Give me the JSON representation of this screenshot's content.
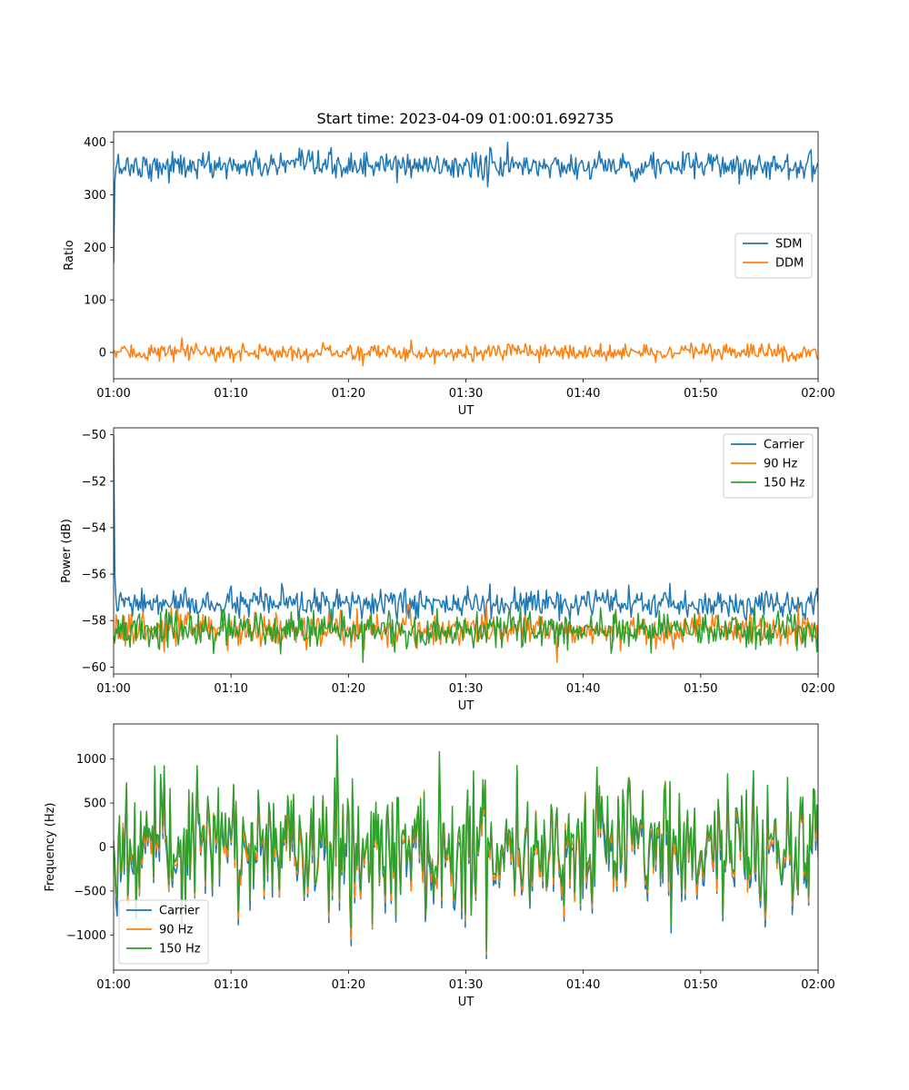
{
  "figure": {
    "title": "Start time: 2023-04-09 01:00:01.692735"
  },
  "colors": {
    "blue": "#1f77b4",
    "orange": "#ff7f0e",
    "green": "#2ca02c"
  },
  "chart_data": [
    {
      "type": "line",
      "title": "Start time: 2023-04-09 01:00:01.692735",
      "xlabel": "UT",
      "ylabel": "Ratio",
      "x_range": [
        "01:00",
        "02:00"
      ],
      "x_ticks": [
        "01:00",
        "01:10",
        "01:20",
        "01:30",
        "01:40",
        "01:50",
        "02:00"
      ],
      "ylim": [
        -50,
        420
      ],
      "y_ticks": [
        0,
        100,
        200,
        300,
        400
      ],
      "legend": "center-right",
      "series": [
        {
          "name": "SDM",
          "color": "#1f77b4",
          "start": 170,
          "mean": 355,
          "noise": 13,
          "spike_max": 400,
          "spike_min": 315
        },
        {
          "name": "DDM",
          "color": "#ff7f0e",
          "mean": 0,
          "noise": 8,
          "spike_max": 28,
          "spike_min": -25
        }
      ]
    },
    {
      "type": "line",
      "xlabel": "UT",
      "ylabel": "Power (dB)",
      "x_range": [
        "01:00",
        "02:00"
      ],
      "x_ticks": [
        "01:00",
        "01:10",
        "01:20",
        "01:30",
        "01:40",
        "01:50",
        "02:00"
      ],
      "ylim": [
        -60.3,
        -49.7
      ],
      "y_ticks": [
        -60,
        -58,
        -56,
        -54,
        -52,
        -50
      ],
      "legend": "top-right",
      "series": [
        {
          "name": "Carrier",
          "color": "#1f77b4",
          "start": -50,
          "mean": -57.3,
          "noise": 0.3,
          "spike_max": -56.4,
          "spike_min": -58.0
        },
        {
          "name": "90 Hz",
          "color": "#ff7f0e",
          "mean": -58.4,
          "noise": 0.35,
          "spike_max": -57.3,
          "spike_min": -59.8
        },
        {
          "name": "150 Hz",
          "color": "#2ca02c",
          "mean": -58.4,
          "noise": 0.4,
          "spike_max": -57.4,
          "spike_min": -59.8
        }
      ]
    },
    {
      "type": "line",
      "xlabel": "UT",
      "ylabel": "Frequency (Hz)",
      "x_range": [
        "01:00",
        "02:00"
      ],
      "x_ticks": [
        "01:00",
        "01:10",
        "01:20",
        "01:30",
        "01:40",
        "01:50",
        "02:00"
      ],
      "ylim": [
        -1400,
        1400
      ],
      "y_ticks": [
        -1000,
        -500,
        0,
        500,
        1000
      ],
      "legend": "bottom-left",
      "series": [
        {
          "name": "Carrier",
          "color": "#1f77b4",
          "mean": -50,
          "noise": 400,
          "spike_max": 1050,
          "spike_min": -1270
        },
        {
          "name": "90 Hz",
          "color": "#ff7f0e",
          "mean": 0,
          "noise": 400,
          "spike_max": 1100,
          "spike_min": -1220
        },
        {
          "name": "150 Hz",
          "color": "#2ca02c",
          "mean": 50,
          "noise": 400,
          "spike_max": 1270,
          "spike_min": -1180
        }
      ]
    }
  ]
}
